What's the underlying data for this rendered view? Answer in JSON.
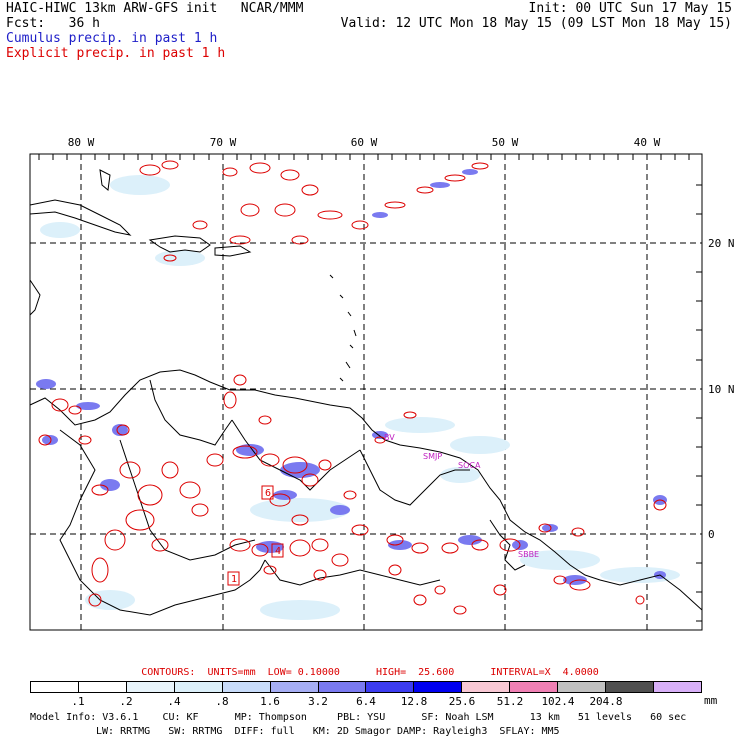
{
  "header": {
    "model_line": "HAIC-HIWC 13km ARW-GFS init   NCAR/MMM",
    "fcst_label": "Fcst:   36 h",
    "init_line": "Init: 00 UTC Sun 17 May 15",
    "valid_line": "Valid: 12 UTC Mon 18 May 15 (09 LST Mon 18 May 15)",
    "cumulus_label": "Cumulus precip. in past 1 h",
    "explicit_label": "Explicit precip. in past 1 h"
  },
  "map": {
    "lon_labels": [
      "80 W",
      "70 W",
      "60 W",
      "50 W",
      "40 W"
    ],
    "lat_labels": [
      "20 N",
      "10 N",
      "0"
    ],
    "station_labels": [
      "BV",
      "SMJP",
      "SOCA",
      "SBBE"
    ],
    "box_labels": [
      "1",
      "4",
      "6"
    ]
  },
  "legend": {
    "contours_line": "CONTOURS:  UNITS=mm  LOW= 0.10000      HIGH=  25.600      INTERVAL=X  4.0000",
    "scale_values": [
      ".1",
      ".2",
      ".4",
      ".8",
      "1.6",
      "3.2",
      "6.4",
      "12.8",
      "25.6",
      "51.2",
      "102.4",
      "204.8"
    ],
    "units": "mm",
    "colors": [
      "#ffffff",
      "#ffffff",
      "#e8f4fb",
      "#dcf0fa",
      "#c8dcfa",
      "#a6aef4",
      "#7a7af0",
      "#3c3cf0",
      "#0000f0",
      "#f8c8d4",
      "#f080b4",
      "#c0c0c0",
      "#505050",
      "#d8b0f8"
    ]
  },
  "footer": {
    "line1": "Model Info: V3.6.1    CU: KF      MP: Thompson     PBL: YSU      SF: Noah LSM      13 km   51 levels   60 sec",
    "line2": "LW: RRTMG   SW: RRTMG  DIFF: full   KM: 2D Smagor DAMP: Rayleigh3  SFLAY: MM5"
  }
}
